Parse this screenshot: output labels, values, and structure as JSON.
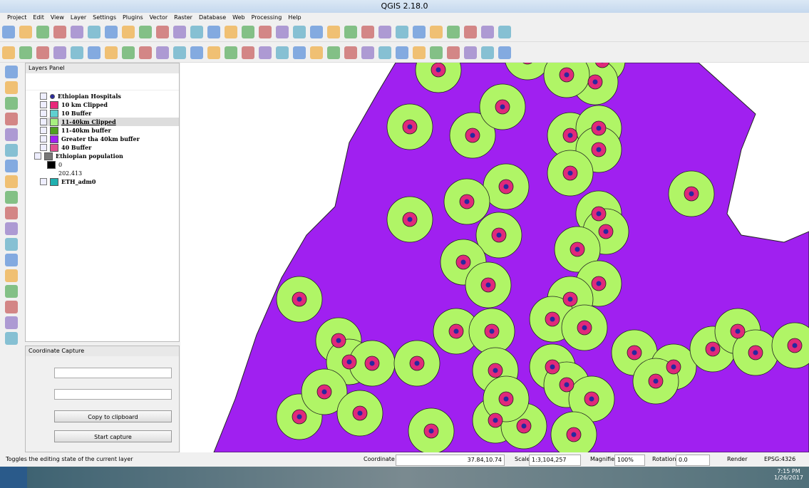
{
  "window": {
    "title": "QGIS 2.18.0"
  },
  "menu": [
    "Project",
    "Edit",
    "View",
    "Layer",
    "Settings",
    "Plugins",
    "Vector",
    "Raster",
    "Database",
    "Web",
    "Processing",
    "Help"
  ],
  "layers_panel": {
    "title": "Layers Panel",
    "layers": [
      "Ethiopian Hospitals",
      "10 km Clipped",
      "10 Buffer",
      "11-40km Clipped",
      "11-40km buffer",
      "Greater tha 40km buffer",
      "40 Buffer",
      "Ethiopian population",
      "0",
      "202.413",
      "ETH_adm0"
    ]
  },
  "coordinate_capture": {
    "title": "Coordinate Capture",
    "copy_button": "Copy to clipboard",
    "start_button": "Start capture"
  },
  "status_bar": {
    "message": "Toggles the editing state of the current layer",
    "coordinate_label": "Coordinate",
    "coordinate": "37.84,10.74",
    "scale_label": "Scale",
    "scale": "1:3,104,257",
    "magnifier_label": "Magnifier",
    "magnifier": "100%",
    "rotation_label": "Rotation",
    "rotation": "0.0",
    "render_label": "Render",
    "crs": "EPSG:4326"
  },
  "taskbar": {
    "time": "7:15 PM",
    "date": "1/26/2017"
  }
}
